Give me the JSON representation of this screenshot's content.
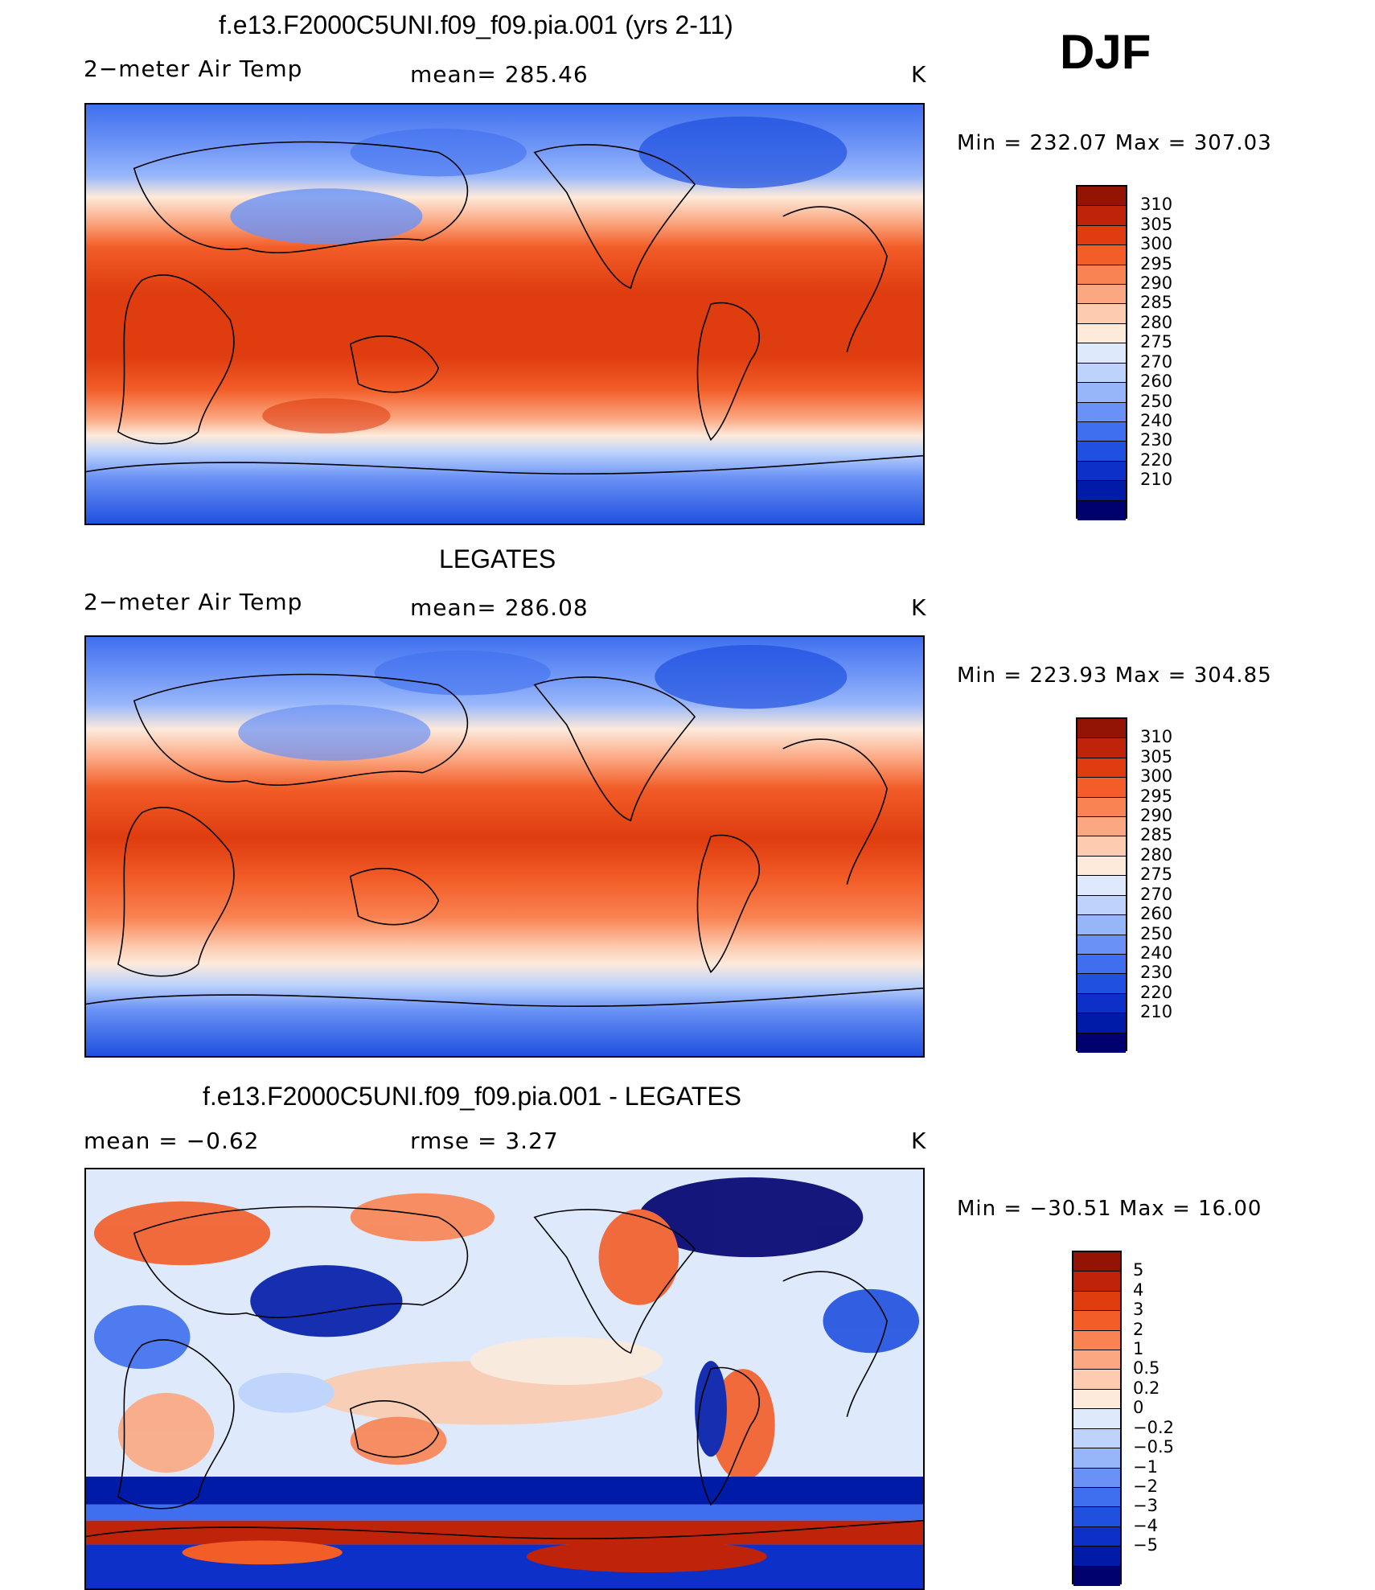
{
  "season": "DJF",
  "colormaps": {
    "temp": [
      "#00006e",
      "#001ba8",
      "#0d31c8",
      "#2050e0",
      "#3f6fee",
      "#6a92f6",
      "#97b6fa",
      "#bdd3fb",
      "#deeafc",
      "#fdeadb",
      "#fccbb0",
      "#fba882",
      "#f98352",
      "#f25d28",
      "#df3c0f",
      "#bf240a",
      "#931405"
    ],
    "diff": [
      "#00006e",
      "#001ba8",
      "#0d31c8",
      "#2050e0",
      "#3f6fee",
      "#6a92f6",
      "#97b6fa",
      "#bdd3fb",
      "#deeafc",
      "#fdeadb",
      "#fccbb0",
      "#fba882",
      "#f98352",
      "#f25d28",
      "#df3c0f",
      "#bf240a",
      "#931405"
    ]
  },
  "panels": [
    {
      "title": "f.e13.F2000C5UNI.f09_f09.pia.001 (yrs 2-11)",
      "left_label": "2−meter Air Temp",
      "center_label": "mean=  285.46",
      "units": "K",
      "minmax": "Min  =  232.07  Max  =  307.03",
      "colorbar_labels": [
        "310",
        "305",
        "300",
        "295",
        "290",
        "285",
        "280",
        "275",
        "270",
        "260",
        "250",
        "240",
        "230",
        "220",
        "210"
      ]
    },
    {
      "title": "LEGATES",
      "left_label": "2−meter Air Temp",
      "center_label": "mean=  286.08",
      "units": "K",
      "minmax": "Min  =  223.93  Max  =  304.85",
      "colorbar_labels": [
        "310",
        "305",
        "300",
        "295",
        "290",
        "285",
        "280",
        "275",
        "270",
        "260",
        "250",
        "240",
        "230",
        "220",
        "210"
      ]
    },
    {
      "title": "f.e13.F2000C5UNI.f09_f09.pia.001 - LEGATES",
      "left_label": "mean  =    −0.62",
      "center_label": "rmse  =     3.27",
      "units": "K",
      "minmax": "Min  =  −30.51  Max  =    16.00",
      "colorbar_labels": [
        "5",
        "4",
        "3",
        "2",
        "1",
        "0.5",
        "0.2",
        "0",
        "−0.2",
        "−0.5",
        "−1",
        "−2",
        "−3",
        "−4",
        "−5"
      ]
    }
  ]
}
